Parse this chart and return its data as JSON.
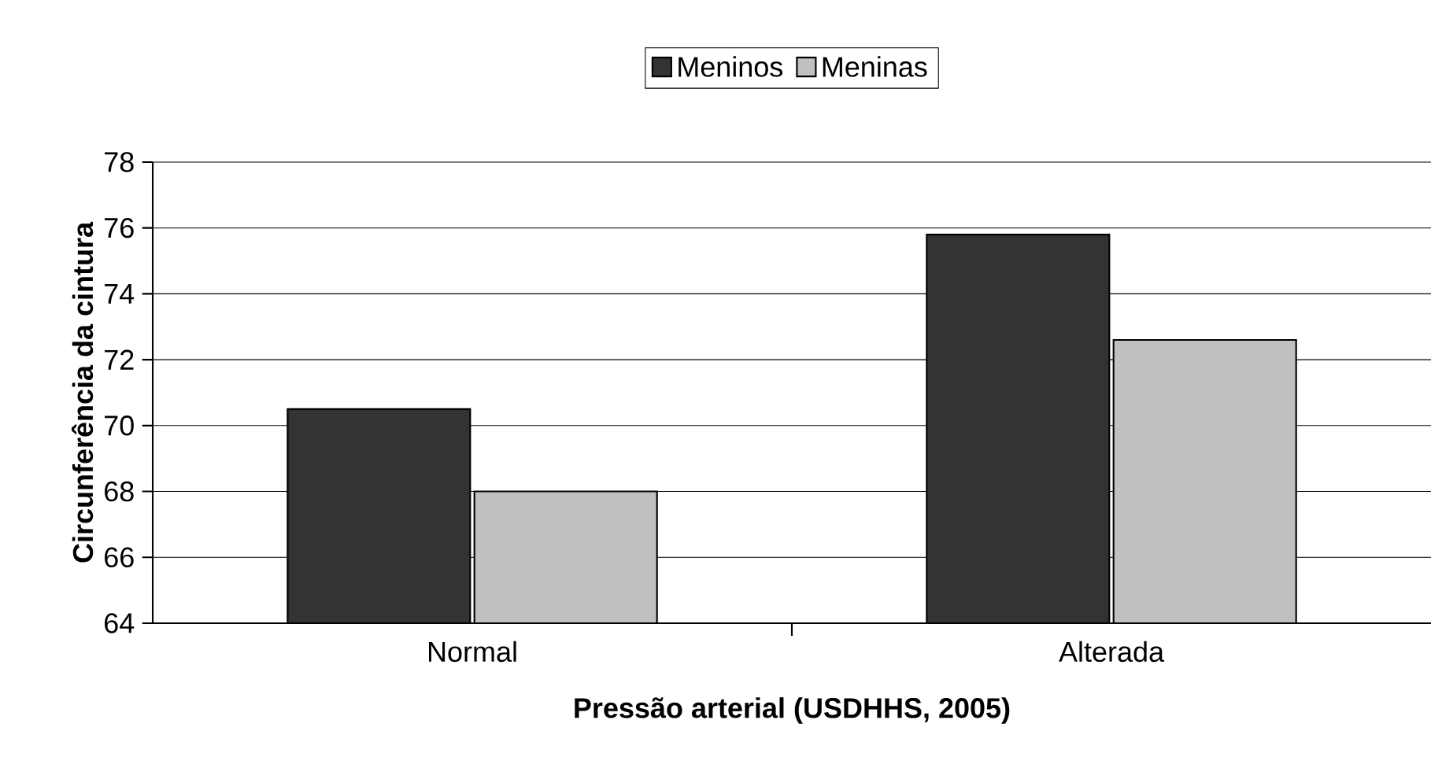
{
  "chart_data": {
    "type": "bar",
    "xlabel": "Pressão arterial (USDHHS, 2005)",
    "ylabel": "Circunferência da cintura",
    "categories": [
      "Normal",
      "Alterada"
    ],
    "series": [
      {
        "name": "Meninos",
        "color": "#333333",
        "values": [
          70.5,
          75.8
        ]
      },
      {
        "name": "Meninas",
        "color": "#c0c0c0",
        "values": [
          68.0,
          72.6
        ]
      }
    ],
    "ylim": [
      64,
      78
    ],
    "yticks": [
      64,
      66,
      68,
      70,
      72,
      74,
      76,
      78
    ],
    "grid": "y",
    "legend": "top"
  }
}
